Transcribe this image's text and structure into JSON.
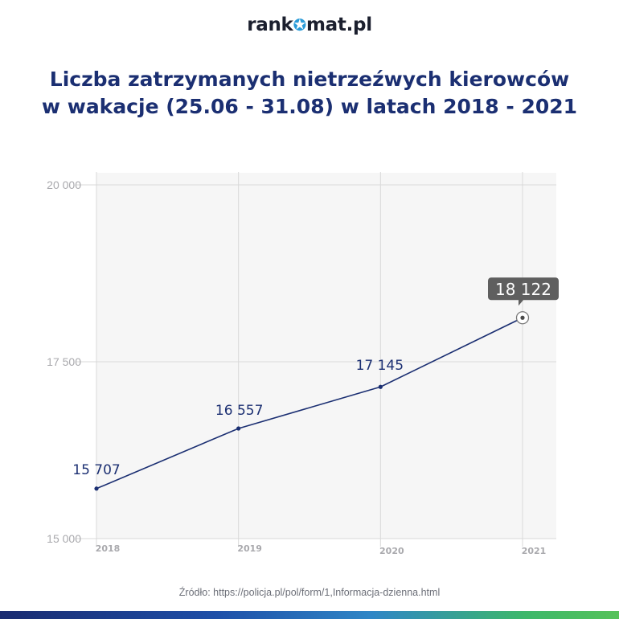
{
  "header": {
    "logo_part1": "rank",
    "logo_star": "✪",
    "logo_part2": "mat.pl",
    "title_line1": "Liczba zatrzymanych nietrzeźwych kierowców",
    "title_line2": "w wakacje (25.06 - 31.08) w latach 2018 - 2021"
  },
  "footer": {
    "source": "Źródło: https://policja.pl/pol/form/1,Informacja-dzienna.html"
  },
  "colors": {
    "title": "#1b2f72",
    "line": "#1b2f72",
    "grid": "#d9d9d9",
    "plot_bg": "#f6f6f6",
    "tooltip_bg": "#5f5f5f"
  },
  "chart_data": {
    "type": "line",
    "title": "Liczba zatrzymanych nietrzeźwych kierowców w wakacje (25.06 - 31.08) w latach 2018 - 2021",
    "categories": [
      "2018",
      "2019",
      "2020",
      "2021"
    ],
    "series": [
      {
        "values": [
          15707,
          16557,
          17145,
          18122
        ]
      }
    ],
    "data_labels": [
      "15 707",
      "16 557",
      "17 145",
      "18 122"
    ],
    "highlighted_point": "2021",
    "ylim": [
      15000,
      20000
    ],
    "yticks": [
      {
        "value": 15000,
        "label": "15 000"
      },
      {
        "value": 17500,
        "label": "17 500"
      },
      {
        "value": 20000,
        "label": "20 000"
      }
    ],
    "xlabel": "",
    "ylabel": "",
    "grid": true
  }
}
